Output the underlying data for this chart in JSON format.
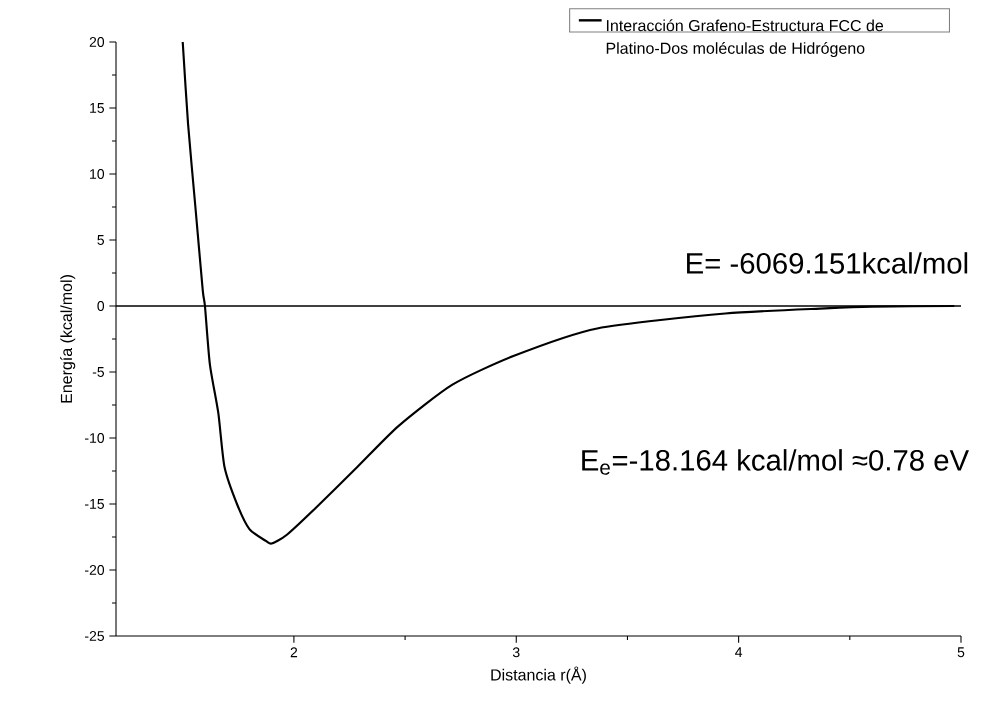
{
  "chart_data": {
    "type": "line",
    "xlabel": "Distancia r(Å)",
    "ylabel": "Energía (kcal/mol)",
    "xlim": [
      1.2,
      5
    ],
    "xticks": [
      2,
      3,
      4,
      5
    ],
    "ylim": [
      -25,
      20
    ],
    "yticks": [
      -25,
      -20,
      -15,
      -10,
      -5,
      0,
      5,
      10,
      15,
      20
    ],
    "series": [
      {
        "name": "Interacción Grafeno-Estructura FCC de Platino-Dos moléculas de Hidrógeno",
        "color": "#000000",
        "x": [
          1.5,
          1.524,
          1.557,
          1.59,
          1.6,
          1.622,
          1.66,
          1.688,
          1.744,
          1.8,
          1.874,
          1.9,
          1.967,
          2.098,
          2.285,
          2.47,
          2.713,
          2.99,
          3.364,
          3.94,
          4.39,
          4.6,
          4.97
        ],
        "values": [
          20,
          13.8,
          7.5,
          1.2,
          0,
          -4.4,
          -8.1,
          -12.2,
          -15.0,
          -16.9,
          -17.8,
          -18.0,
          -17.35,
          -15.3,
          -12.2,
          -9.1,
          -5.96,
          -3.77,
          -1.7,
          -0.57,
          -0.18,
          -0.05,
          0
        ]
      }
    ],
    "ref_lines": [
      {
        "axis": "y",
        "value": 0
      }
    ],
    "legend": "top right",
    "annotations": [
      "E= -6069.151kcal/mol",
      "E$_{e}$=-18.164 kcal/mol ≈0.78 eV"
    ]
  }
}
